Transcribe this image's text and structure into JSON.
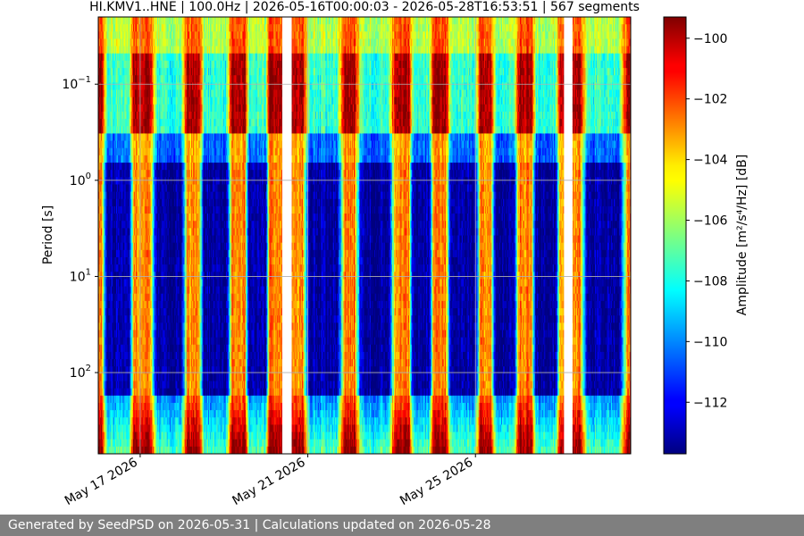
{
  "chart_data": {
    "type": "heatmap",
    "title": "HI.KMV1..HNE | 100.0Hz | 2026-05-16T00:00:03 - 2026-05-28T16:53:51 | 567 segments",
    "ylabel": "Period [s]",
    "xlabel": "",
    "x_range": [
      "2026-05-16T00:00:03",
      "2026-05-28T16:53:51"
    ],
    "x_ticks": [
      {
        "date": "2026-05-17",
        "label": "May 17 2026"
      },
      {
        "date": "2026-05-21",
        "label": "May 21 2026"
      },
      {
        "date": "2026-05-25",
        "label": "May 25 2026"
      }
    ],
    "y_scale": "log",
    "y_inverted": true,
    "y_range_seconds": [
      0.02,
      700
    ],
    "y_ticks": [
      {
        "value": 0.1,
        "base": "10",
        "exp": "−1"
      },
      {
        "value": 1,
        "base": "10",
        "exp": "0"
      },
      {
        "value": 10,
        "base": "10",
        "exp": "1"
      },
      {
        "value": 100,
        "base": "10",
        "exp": "2"
      }
    ],
    "grid": true,
    "colormap": "jet",
    "colorbar": {
      "label": "Amplitude [m²/s⁴/Hz] [dB]",
      "range_db": [
        -113.7,
        -99.3
      ],
      "ticks": [
        "−100",
        "−102",
        "−104",
        "−106",
        "−108",
        "−110",
        "−112"
      ],
      "tick_values": [
        -100,
        -102,
        -104,
        -106,
        -108,
        -110,
        -112
      ]
    },
    "data_gaps": [
      {
        "start": "2026-05-20T09:20:00",
        "end": "2026-05-20T14:50:00"
      },
      {
        "start": "2026-05-27T02:30:00",
        "end": "2026-05-27T07:30:00"
      }
    ],
    "quiet_intervals_description_free": [
      {
        "start": "2026-05-16T02:00:00",
        "end": "2026-05-16T20:30:00"
      },
      {
        "start": "2026-05-17T06:00:00",
        "end": "2026-05-18T03:00:00"
      },
      {
        "start": "2026-05-18T09:30:00",
        "end": "2026-05-19T04:30:00"
      },
      {
        "start": "2026-05-19T12:00:00",
        "end": "2026-05-20T02:00:00"
      },
      {
        "start": "2026-05-20T21:00:00",
        "end": "2026-05-21T21:00:00"
      },
      {
        "start": "2026-05-22T03:00:00",
        "end": "2026-05-23T02:00:00"
      },
      {
        "start": "2026-05-23T10:00:00",
        "end": "2026-05-24T00:00:00"
      },
      {
        "start": "2026-05-24T07:00:00",
        "end": "2026-05-25T03:00:00"
      },
      {
        "start": "2026-05-25T09:00:00",
        "end": "2026-05-26T00:30:00"
      },
      {
        "start": "2026-05-26T08:00:00",
        "end": "2026-05-27T00:30:00"
      },
      {
        "start": "2026-05-27T12:00:00",
        "end": "2026-05-28T15:00:00"
      }
    ]
  },
  "footer": {
    "text": "Generated by SeedPSD on 2026-05-31 | Calculations updated on 2026-05-28"
  }
}
